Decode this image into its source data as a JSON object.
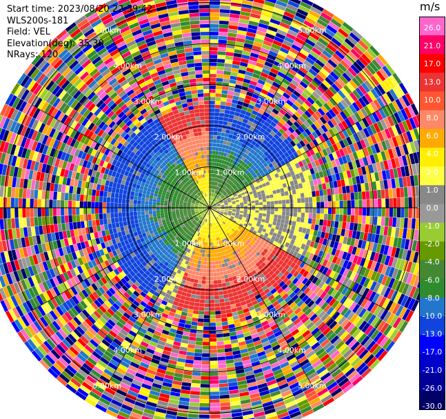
{
  "info": {
    "start_time": "Start time: 2023/08/20 22:39:42",
    "instrument": "WLS200s-181",
    "field": "Field: VEL",
    "elevation": "Elevation(deg): 35.30",
    "nrays": "NRays: 120"
  },
  "chart_data": {
    "type": "heatmap",
    "projection": "polar",
    "field": "VEL",
    "units": "m/s",
    "n_rays": 120,
    "range_rings_km": [
      1.0,
      2.0,
      3.0,
      4.0,
      5.0
    ],
    "range_ring_labels": [
      "1.00km",
      "2.00km",
      "3.00km",
      "4.00km",
      "5.00km"
    ],
    "max_range_km": 5.6,
    "spokes_deg": [
      0,
      30,
      60,
      90,
      120,
      150,
      180,
      210,
      240,
      270,
      300,
      330
    ],
    "colorbar": {
      "title": "m/s",
      "ticks": [
        "26.0",
        "21.0",
        "17.0",
        "13.0",
        "10.0",
        "8.0",
        "6.0",
        "4.0",
        "2.0",
        "1.0",
        "0.0",
        "-1.0",
        "-2.0",
        "-4.0",
        "-6.0",
        "-8.0",
        "-10.0",
        "-13.0",
        "-17.0",
        "-21.0",
        "-26.0",
        "-30.0"
      ],
      "colors": [
        "#ff66cc",
        "#ff0066",
        "#ff0000",
        "#ee3333",
        "#ff5533",
        "#ff8866",
        "#ffaa00",
        "#ffee00",
        "#ffff44",
        "#888888",
        "#999999",
        "#99cc33",
        "#669900",
        "#448833",
        "#2e8b2e",
        "#2277cc",
        "#1144dd",
        "#0000ff",
        "#0000cc",
        "#000099",
        "#000066"
      ]
    },
    "near_field": {
      "toward_sectors": [
        {
          "from_deg": 0,
          "to_deg": 60
        },
        {
          "from_deg": 210,
          "to_deg": 330
        }
      ],
      "away_sectors": [
        {
          "from_deg": 120,
          "to_deg": 200
        },
        {
          "from_deg": 330,
          "to_deg": 360
        }
      ],
      "valid_range_km": 2.4
    }
  }
}
